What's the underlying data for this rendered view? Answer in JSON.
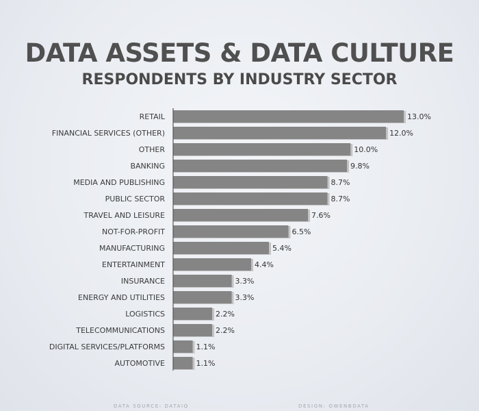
{
  "chart_data": {
    "type": "bar",
    "orientation": "horizontal",
    "title": "DATA ASSETS & DATA CULTURE",
    "subtitle": "RESPONDENTS BY INDUSTRY SECTOR",
    "categories": [
      "RETAIL",
      "FINANCIAL SERVICES (OTHER)",
      "OTHER",
      "BANKING",
      "MEDIA AND PUBLISHING",
      "PUBLIC SECTOR",
      "TRAVEL AND LEISURE",
      "NOT-FOR-PROFIT",
      "MANUFACTURING",
      "ENTERTAINMENT",
      "INSURANCE",
      "ENERGY AND UTILITIES",
      "LOGISTICS",
      "TELECOMMUNICATIONS",
      "DIGITAL SERVICES/PLATFORMS",
      "AUTOMOTIVE"
    ],
    "values": [
      13.0,
      12.0,
      10.0,
      9.8,
      8.7,
      8.7,
      7.6,
      6.5,
      5.4,
      4.4,
      3.3,
      3.3,
      2.2,
      2.2,
      1.1,
      1.1
    ],
    "value_labels": [
      "13.0%",
      "12.0%",
      "10.0%",
      "9.8%",
      "8.7%",
      "8.7%",
      "7.6%",
      "6.5%",
      "5.4%",
      "4.4%",
      "3.3%",
      "3.3%",
      "2.2%",
      "2.2%",
      "1.1%",
      "1.1%"
    ],
    "unit": "%",
    "xlim": [
      0,
      13.0
    ],
    "grid": false,
    "legend": "none",
    "bar_color": "#858585",
    "bar_shadow_color": "#c4c4c4",
    "axis_color": "#555555"
  },
  "footer": {
    "source": "DATA SOURCE:  DATAIQ",
    "design": "DESIGN: OWENBDATA"
  }
}
